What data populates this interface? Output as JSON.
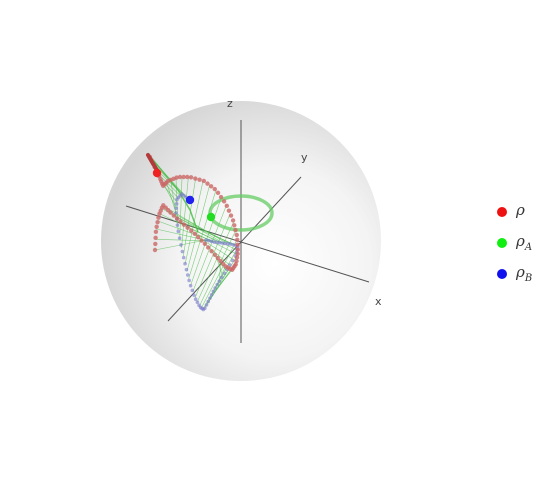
{
  "axes": {
    "x_label": "x",
    "y_label": "y",
    "z_label": "z"
  },
  "legend": [
    {
      "symbol": "ρ",
      "subscript": "",
      "color": "#ee1111"
    },
    {
      "symbol": "ρ",
      "subscript": "A",
      "color": "#11ee11"
    },
    {
      "symbol": "ρ",
      "subscript": "B",
      "color": "#1111ee"
    }
  ],
  "colors": {
    "rho_path": "#cc6666",
    "rho_current": "#ee2222",
    "rhoA_path": "#66cc66",
    "rhoA_current": "#22dd22",
    "rhoB_path": "#7777cc",
    "rhoB_current": "#2222ee",
    "connector": "#44bb44",
    "axis": "#555555"
  }
}
